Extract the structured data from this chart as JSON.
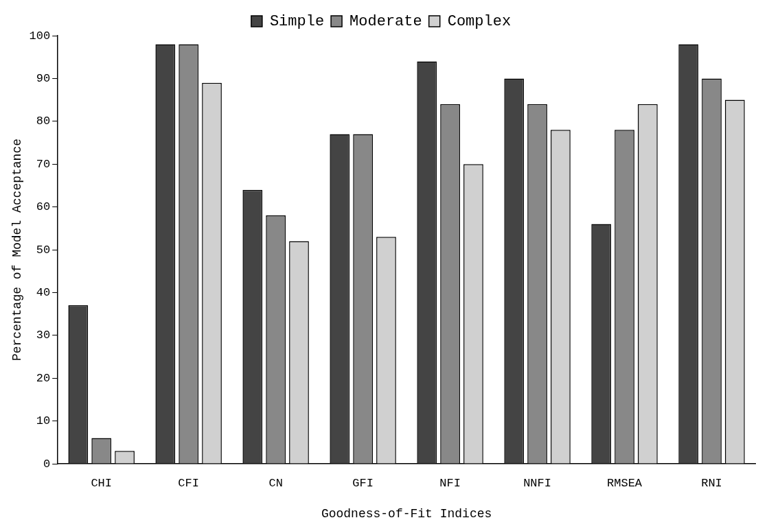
{
  "chart_data": {
    "type": "bar",
    "xlabel": "Goodness-of-Fit Indices",
    "ylabel": "Percentage of Model Acceptance",
    "categories": [
      "CHI",
      "CFI",
      "CN",
      "GFI",
      "NFI",
      "NNFI",
      "RMSEA",
      "RNI"
    ],
    "series": [
      {
        "name": "Simple",
        "color": "#444444",
        "values": [
          37,
          98,
          64,
          77,
          94,
          90,
          56,
          98
        ]
      },
      {
        "name": "Moderate",
        "color": "#888888",
        "values": [
          6,
          98,
          58,
          77,
          84,
          84,
          78,
          90
        ]
      },
      {
        "name": "Complex",
        "color": "#d0d0d0",
        "values": [
          3,
          89,
          52,
          53,
          70,
          78,
          84,
          85
        ]
      }
    ],
    "ylim": [
      0,
      100
    ],
    "yticks": [
      0,
      10,
      20,
      30,
      40,
      50,
      60,
      70,
      80,
      90,
      100
    ],
    "grid": false,
    "legend": "top"
  }
}
